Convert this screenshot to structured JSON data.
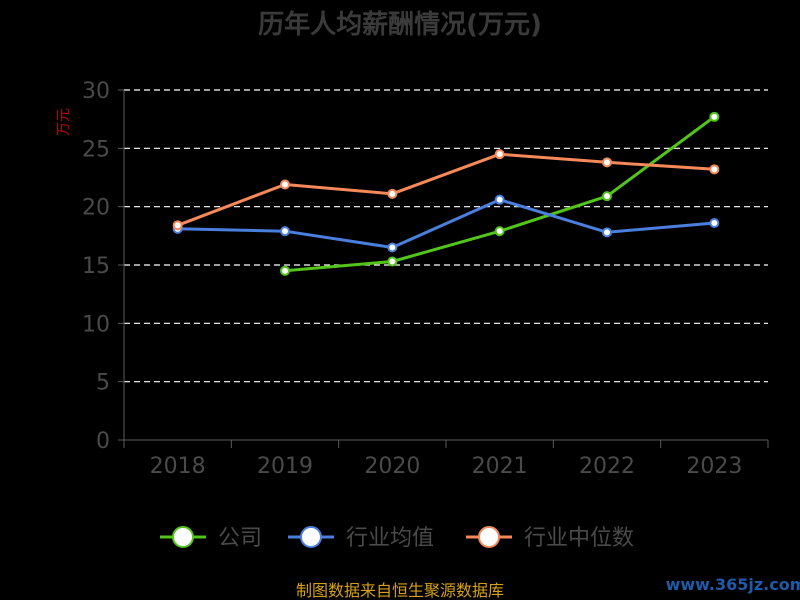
{
  "chart_data": {
    "type": "line",
    "title": "历年人均薪酬情况(万元)",
    "ylabel": "万元",
    "xlabel": "",
    "categories": [
      "2018",
      "2019",
      "2020",
      "2021",
      "2022",
      "2023"
    ],
    "ylim": [
      0,
      30
    ],
    "yticks": [
      0,
      5,
      10,
      15,
      20,
      25,
      30
    ],
    "grid": true,
    "legend_position": "bottom",
    "series": [
      {
        "name": "公司",
        "color": "#52c41a",
        "values": [
          null,
          14.5,
          15.3,
          17.9,
          20.9,
          27.7
        ]
      },
      {
        "name": "行业均值",
        "color": "#4a7fdd",
        "values": [
          18.1,
          17.9,
          16.5,
          20.6,
          17.8,
          18.6
        ]
      },
      {
        "name": "行业中位数",
        "color": "#f5895a",
        "values": [
          18.4,
          21.9,
          21.1,
          24.5,
          23.8,
          23.2
        ]
      }
    ]
  },
  "footer": {
    "source": "制图数据来自恒生聚源数据库",
    "watermark": "www.365jz.com"
  }
}
